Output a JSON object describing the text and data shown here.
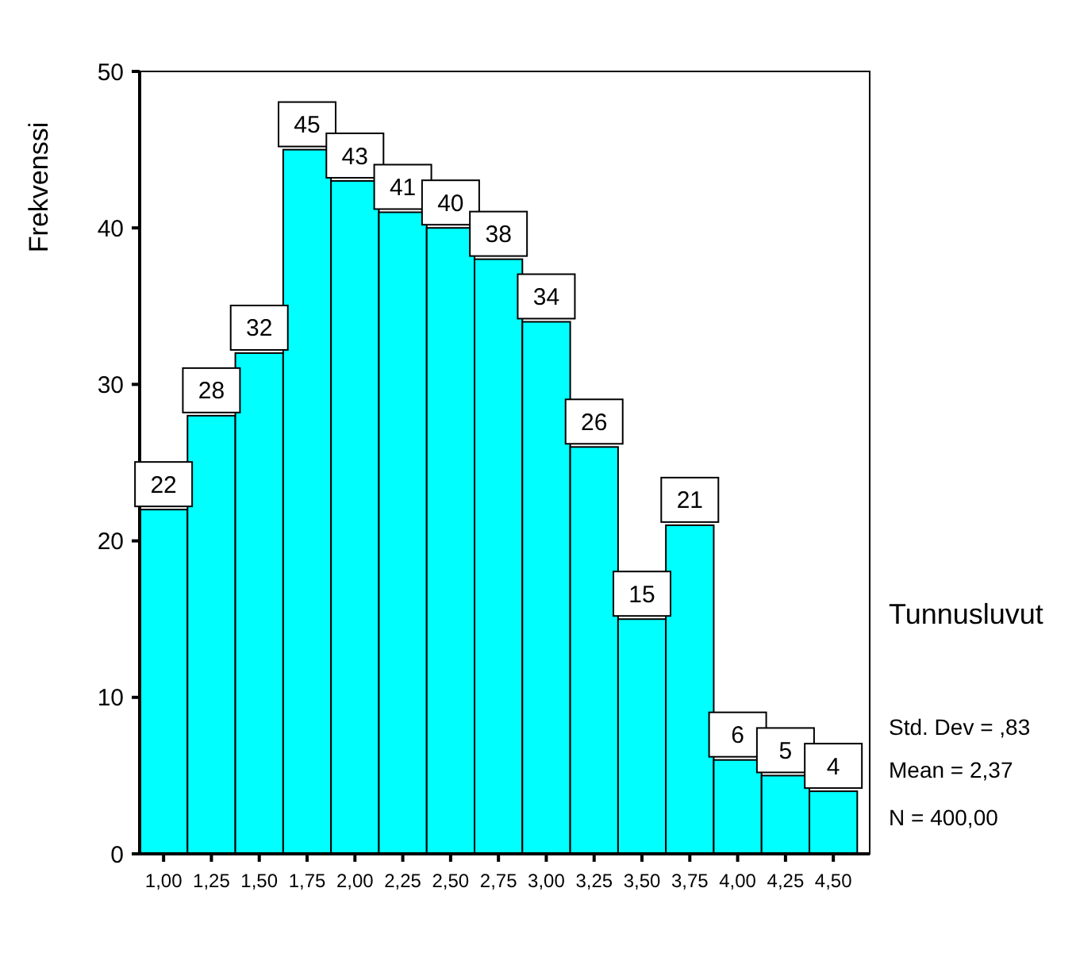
{
  "chart_data": {
    "type": "histogram",
    "ylabel": "Frekvenssi",
    "bins": [
      0.875,
      1.125,
      1.375,
      1.625,
      1.875,
      2.125,
      2.375,
      2.625,
      2.875,
      3.125,
      3.375,
      3.625,
      3.875,
      4.125,
      4.375,
      4.625
    ],
    "values": [
      22,
      28,
      32,
      45,
      43,
      41,
      40,
      38,
      34,
      26,
      15,
      21,
      6,
      5,
      4
    ],
    "color": "#00ffff",
    "data_labels": true,
    "xlim": [
      0.875,
      4.69
    ],
    "xticks": [
      {
        "value": 1,
        "label": "1,00"
      },
      {
        "value": 1.25,
        "label": "1,25"
      },
      {
        "value": 1.5,
        "label": "1,50"
      },
      {
        "value": 1.75,
        "label": "1,75"
      },
      {
        "value": 2,
        "label": "2,00"
      },
      {
        "value": 2.25,
        "label": "2,25"
      },
      {
        "value": 2.5,
        "label": "2,50"
      },
      {
        "value": 2.75,
        "label": "2,75"
      },
      {
        "value": 3,
        "label": "3,00"
      },
      {
        "value": 3.25,
        "label": "3,25"
      },
      {
        "value": 3.5,
        "label": "3,50"
      },
      {
        "value": 3.75,
        "label": "3,75"
      },
      {
        "value": 4,
        "label": "4,00"
      },
      {
        "value": 4.25,
        "label": "4,25"
      },
      {
        "value": 4.5,
        "label": "4,50"
      }
    ],
    "ylim": [
      0,
      50
    ],
    "yticks": [
      0,
      10,
      20,
      30,
      40,
      50
    ],
    "annotations": [
      "Tunnusluvut",
      "Std. Dev = ,83",
      "Mean = 2,37",
      "N = 400,00"
    ]
  }
}
